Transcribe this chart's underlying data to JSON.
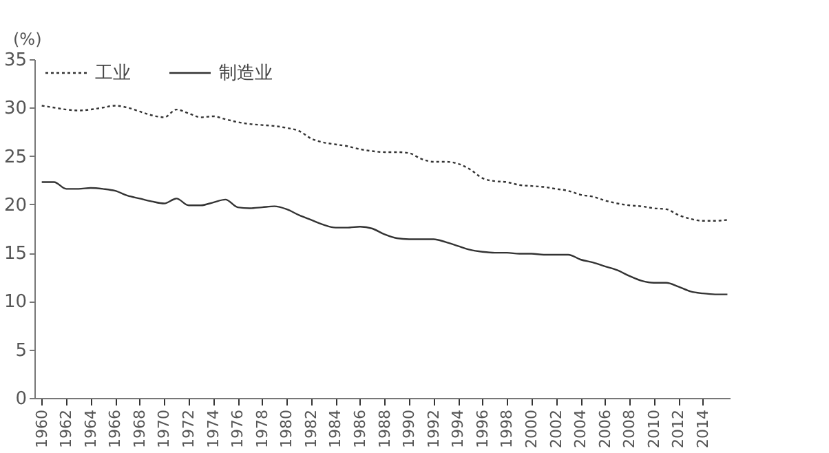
{
  "chart_data": {
    "type": "line",
    "ylabel": "(%)",
    "x": [
      1960,
      1961,
      1962,
      1963,
      1964,
      1965,
      1966,
      1967,
      1968,
      1969,
      1970,
      1971,
      1972,
      1973,
      1974,
      1975,
      1976,
      1977,
      1978,
      1979,
      1980,
      1981,
      1982,
      1983,
      1984,
      1985,
      1986,
      1987,
      1988,
      1989,
      1990,
      1991,
      1992,
      1993,
      1994,
      1995,
      1996,
      1997,
      1998,
      1999,
      2000,
      2001,
      2002,
      2003,
      2004,
      2005,
      2006,
      2007,
      2008,
      2009,
      2010,
      2011,
      2012,
      2013,
      2014,
      2015,
      2016
    ],
    "series": [
      {
        "name": "工业",
        "color": "#333333",
        "line_style": "dotted",
        "values": [
          30.2,
          30.0,
          29.8,
          29.7,
          29.8,
          30.0,
          30.2,
          30.0,
          29.6,
          29.2,
          29.0,
          29.8,
          29.4,
          29.0,
          29.1,
          28.8,
          28.5,
          28.3,
          28.2,
          28.1,
          27.9,
          27.6,
          26.8,
          26.4,
          26.2,
          26.0,
          25.7,
          25.5,
          25.4,
          25.4,
          25.3,
          24.7,
          24.4,
          24.4,
          24.2,
          23.6,
          22.7,
          22.4,
          22.3,
          22.0,
          21.9,
          21.8,
          21.6,
          21.4,
          21.0,
          20.8,
          20.4,
          20.1,
          19.9,
          19.8,
          19.6,
          19.5,
          18.9,
          18.5,
          18.3,
          18.3,
          18.4
        ]
      },
      {
        "name": "制造业",
        "color": "#333333",
        "line_style": "solid",
        "values": [
          22.3,
          22.3,
          21.6,
          21.6,
          21.7,
          21.6,
          21.4,
          20.9,
          20.6,
          20.3,
          20.1,
          20.6,
          19.9,
          19.9,
          20.2,
          20.5,
          19.7,
          19.6,
          19.7,
          19.8,
          19.5,
          18.9,
          18.4,
          17.9,
          17.6,
          17.6,
          17.7,
          17.5,
          16.9,
          16.5,
          16.4,
          16.4,
          16.4,
          16.1,
          15.7,
          15.3,
          15.1,
          15.0,
          15.0,
          14.9,
          14.9,
          14.8,
          14.8,
          14.8,
          14.3,
          14.0,
          13.6,
          13.2,
          12.6,
          12.1,
          11.9,
          11.9,
          11.5,
          11.0,
          10.8,
          10.7,
          10.7
        ]
      }
    ],
    "xlim": [
      1959.4,
      2016.2
    ],
    "xticks": [
      1960,
      1962,
      1964,
      1966,
      1968,
      1970,
      1972,
      1974,
      1976,
      1978,
      1980,
      1982,
      1984,
      1986,
      1988,
      1990,
      1992,
      1994,
      1996,
      1998,
      2000,
      2002,
      2004,
      2006,
      2008,
      2010,
      2012,
      2014
    ],
    "ylim": [
      0,
      35
    ],
    "yticks": [
      0,
      5,
      10,
      15,
      20,
      25,
      30,
      35
    ],
    "legend": "top left",
    "grid": false
  }
}
